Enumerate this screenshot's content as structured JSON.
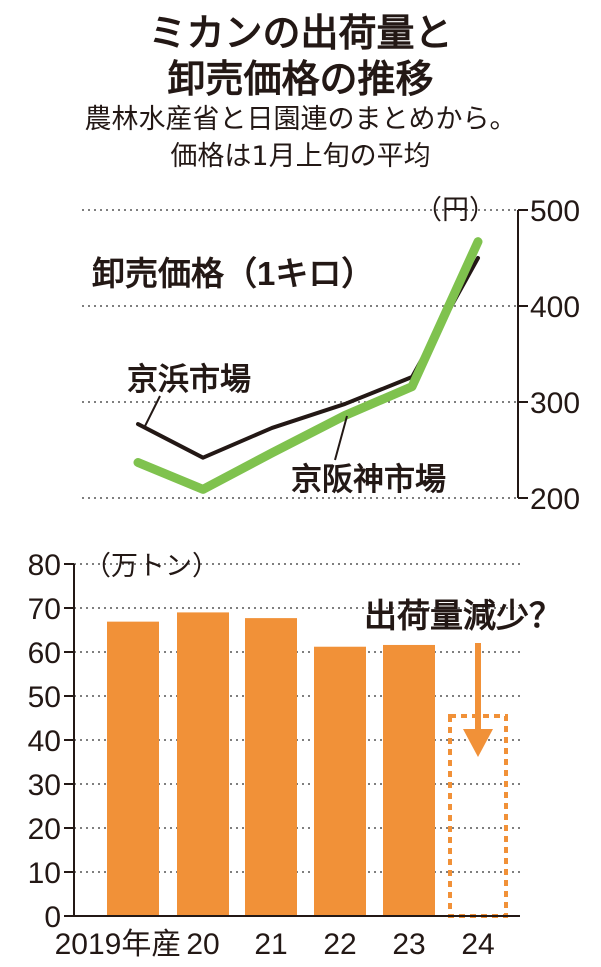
{
  "header": {
    "title_line1": "ミカンの出荷量と",
    "title_line2": "卸売価格の推移",
    "subtitle_line1": "農林水産省と日園連のまとめから。",
    "subtitle_line2": "価格は1月上旬の平均"
  },
  "chart_data": [
    {
      "type": "line",
      "title": "卸売価格（1キロ）",
      "unit_label": "（円）",
      "x": [
        "2019",
        "20",
        "21",
        "22",
        "23",
        "24"
      ],
      "yticks": [
        "200",
        "300",
        "400",
        "500"
      ],
      "ylim": [
        200,
        500
      ],
      "grid": true,
      "series": [
        {
          "name": "京浜市場",
          "color": "#231815",
          "values": [
            277,
            242,
            273,
            298,
            326,
            450
          ]
        },
        {
          "name": "京阪神市場",
          "color": "#7fc24e",
          "values": [
            237,
            209,
            247,
            286,
            316,
            467
          ]
        }
      ]
    },
    {
      "type": "bar",
      "unit_label": "（万トン）",
      "categories": [
        "2019年産",
        "20",
        "21",
        "22",
        "23",
        "24"
      ],
      "values": [
        66.9,
        69.0,
        67.7,
        61.2,
        61.6,
        null
      ],
      "yticks": [
        "0",
        "10",
        "20",
        "30",
        "40",
        "50",
        "60",
        "70",
        "80"
      ],
      "ylim": [
        0,
        80
      ],
      "grid": true,
      "bar_color": "#f19138",
      "annotation": "出荷量減少？"
    }
  ]
}
